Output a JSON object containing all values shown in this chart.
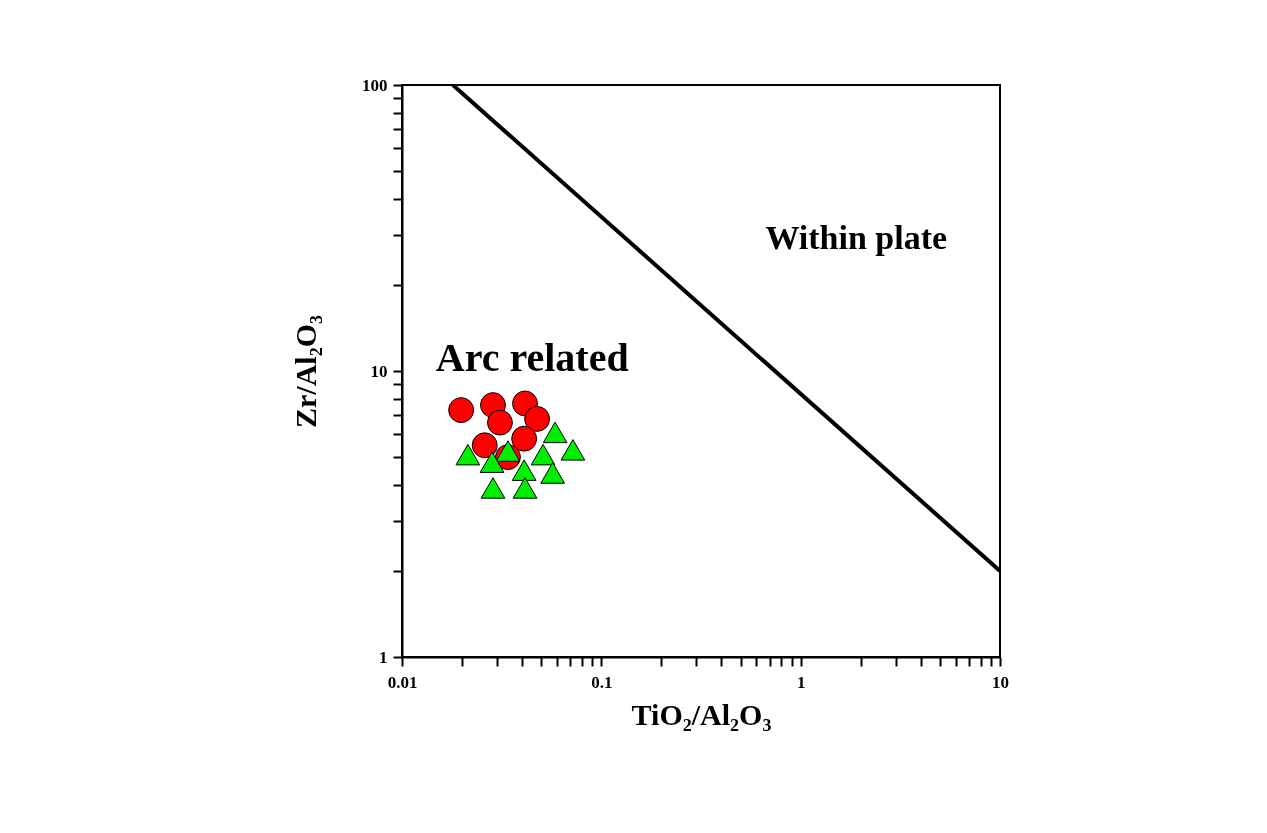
{
  "chart_data": {
    "type": "scatter",
    "xlabel": "TiO₂/Al₂O₃",
    "ylabel": "Zr/Al₂O₃",
    "log": "xy",
    "grid": false,
    "xlim": [
      0.01,
      10
    ],
    "ylim": [
      1,
      100
    ],
    "xticks": [
      0.01,
      {
        "value": 0.02,
        "label": null
      },
      {
        "value": 0.03,
        "label": null
      },
      {
        "value": 0.04,
        "label": null
      },
      {
        "value": 0.05,
        "label": null
      },
      {
        "value": 0.06,
        "label": null
      },
      {
        "value": 0.07,
        "label": null
      },
      {
        "value": 0.08,
        "label": null
      },
      {
        "value": 0.09,
        "label": null
      },
      0.1,
      {
        "value": 0.2,
        "label": null
      },
      {
        "value": 0.3,
        "label": null
      },
      {
        "value": 0.4,
        "label": null
      },
      {
        "value": 0.5,
        "label": null
      },
      {
        "value": 0.6,
        "label": null
      },
      {
        "value": 0.7,
        "label": null
      },
      {
        "value": 0.8,
        "label": null
      },
      {
        "value": 0.9,
        "label": null
      },
      1,
      {
        "value": 2,
        "label": null
      },
      {
        "value": 3,
        "label": null
      },
      {
        "value": 4,
        "label": null
      },
      {
        "value": 5,
        "label": null
      },
      {
        "value": 6,
        "label": null
      },
      {
        "value": 7,
        "label": null
      },
      {
        "value": 8,
        "label": null
      },
      {
        "value": 9,
        "label": null
      },
      10
    ],
    "yticks": [
      1,
      {
        "value": 2,
        "label": null
      },
      {
        "value": 3,
        "label": null
      },
      {
        "value": 4,
        "label": null
      },
      {
        "value": 5,
        "label": null
      },
      {
        "value": 6,
        "label": null
      },
      {
        "value": 7,
        "label": null
      },
      {
        "value": 8,
        "label": null
      },
      {
        "value": 9,
        "label": null
      },
      10,
      {
        "value": 20,
        "label": null
      },
      {
        "value": 30,
        "label": null
      },
      {
        "value": 40,
        "label": null
      },
      {
        "value": 50,
        "label": null
      },
      {
        "value": 60,
        "label": null
      },
      {
        "value": 70,
        "label": null
      },
      {
        "value": 80,
        "label": null
      },
      {
        "value": 90,
        "label": null
      },
      100
    ],
    "series": [
      {
        "type": "line",
        "color": "#000000",
        "marker": "none",
        "x": [
          0.018,
          10
        ],
        "values": [
          100,
          2
        ]
      },
      {
        "type": "scatter",
        "color": "#ff0000",
        "marker": "circle",
        "x": [
          0.0198,
          0.0286,
          0.0414,
          0.031,
          0.0476,
          0.026,
          0.041,
          0.034
        ],
        "values": [
          7.3,
          7.6,
          7.7,
          6.6,
          6.8,
          5.5,
          5.8,
          5.0
        ]
      },
      {
        "type": "scatter",
        "color": "#00ee00",
        "marker": "triangle",
        "x": [
          0.0214,
          0.034,
          0.0586,
          0.072,
          0.0283,
          0.051,
          0.041,
          0.057,
          0.0286,
          0.0414
        ],
        "values": [
          5.1,
          5.25,
          6.1,
          5.3,
          4.8,
          5.1,
          4.5,
          4.4,
          3.9,
          3.9
        ]
      }
    ],
    "annotations": [
      "Arc related",
      "Within plate"
    ]
  }
}
